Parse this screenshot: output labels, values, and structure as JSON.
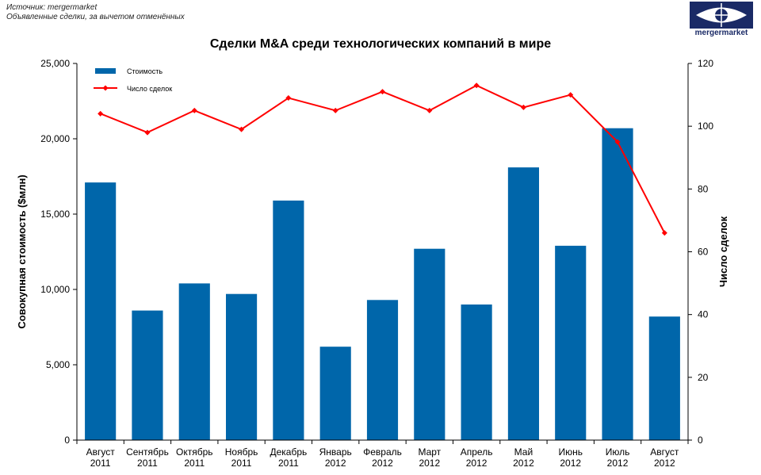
{
  "header": {
    "source_line": "Источник: mergermarket",
    "note_line": "Объявленные сделки, за вычетом отменённых"
  },
  "logo": {
    "text": "mergermarket",
    "icon": "eye-logo-icon",
    "color": "#1a2a66"
  },
  "colors": {
    "bar": "#0066aa",
    "line": "#ff0000",
    "axis": "#000000"
  },
  "chart_data": {
    "type": "bar",
    "title": "Сделки M&A среди технологических компаний в мире",
    "categories": [
      [
        "Август",
        "2011"
      ],
      [
        "Сентябрь",
        "2011"
      ],
      [
        "Октябрь",
        "2011"
      ],
      [
        "Ноябрь",
        "2011"
      ],
      [
        "Декабрь",
        "2011"
      ],
      [
        "Январь",
        "2012"
      ],
      [
        "Февраль",
        "2012"
      ],
      [
        "Март",
        "2012"
      ],
      [
        "Апрель",
        "2012"
      ],
      [
        "Май",
        "2012"
      ],
      [
        "Июнь",
        "2012"
      ],
      [
        "Июль",
        "2012"
      ],
      [
        "Август",
        "2012"
      ]
    ],
    "series": [
      {
        "name": "Стоимость",
        "type": "bar",
        "axis": "left",
        "values": [
          17100,
          8600,
          10400,
          9700,
          15900,
          6200,
          9300,
          12700,
          9000,
          18100,
          12900,
          20700,
          8200
        ]
      },
      {
        "name": "Число сделок",
        "type": "line",
        "axis": "right",
        "values": [
          104,
          98,
          105,
          99,
          109,
          105,
          111,
          105,
          113,
          106,
          110,
          95,
          66
        ]
      }
    ],
    "ylabel": "Совокупная стоимость ($млн)",
    "y2label": "Число сделок",
    "ylim": [
      0,
      25000
    ],
    "y2lim": [
      0,
      120
    ],
    "yticks": [
      "0",
      "5,000",
      "10,000",
      "15,000",
      "20,000",
      "25,000"
    ],
    "y2ticks": [
      "0",
      "20",
      "40",
      "60",
      "80",
      "100",
      "120"
    ],
    "legend": "top-left",
    "grid": false
  }
}
